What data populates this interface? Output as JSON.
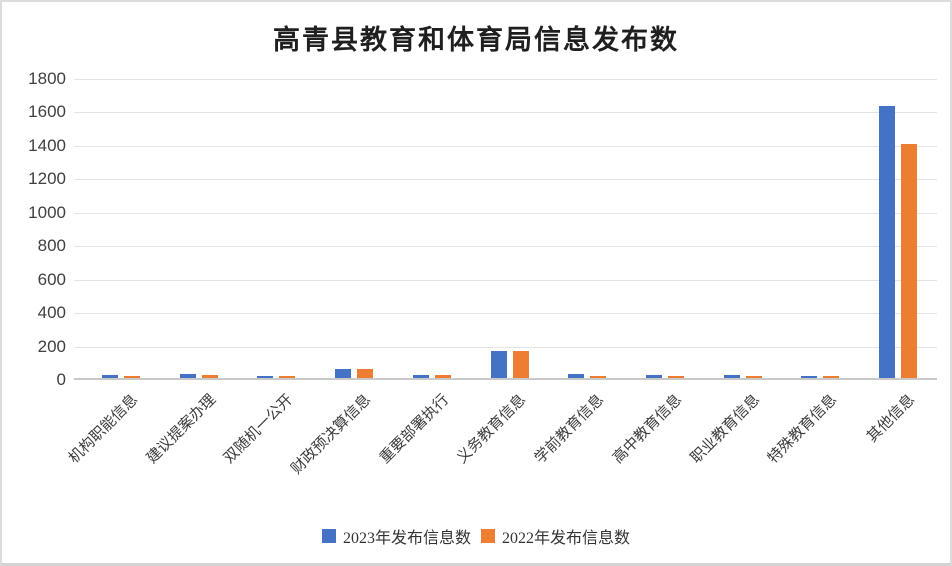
{
  "page": {
    "title": "高青县教育和体育局信息发布数"
  },
  "chart_data": {
    "type": "bar",
    "title": "高青县教育和体育局信息发布数",
    "categories": [
      "机构职能信息",
      "建议提案办理",
      "双随机一公开",
      "财政预决算信息",
      "重要部署执行",
      "义务教育信息",
      "学前教育信息",
      "高中教育信息",
      "职业教育信息",
      "特殊教育信息",
      "其他信息"
    ],
    "series": [
      {
        "name": "2023年发布信息数",
        "color": "#4472C4",
        "values": [
          20,
          22,
          15,
          52,
          20,
          161,
          22,
          16,
          16,
          15,
          1625
        ]
      },
      {
        "name": "2022年发布信息数",
        "color": "#ED7D31",
        "values": [
          12,
          18,
          10,
          53,
          16,
          160,
          12,
          12,
          12,
          10,
          1400
        ]
      }
    ],
    "xlabel": "",
    "ylabel": "",
    "ylim": [
      0,
      1800
    ],
    "yticks": [
      0,
      200,
      400,
      600,
      800,
      1000,
      1200,
      1400,
      1600,
      1800
    ],
    "grid": true,
    "grid_color": "#e4e4e4",
    "axis_color": "#c9c9c9",
    "text_color": "#404040",
    "legend_position": "bottom",
    "x_label_rotation_deg": -45
  }
}
